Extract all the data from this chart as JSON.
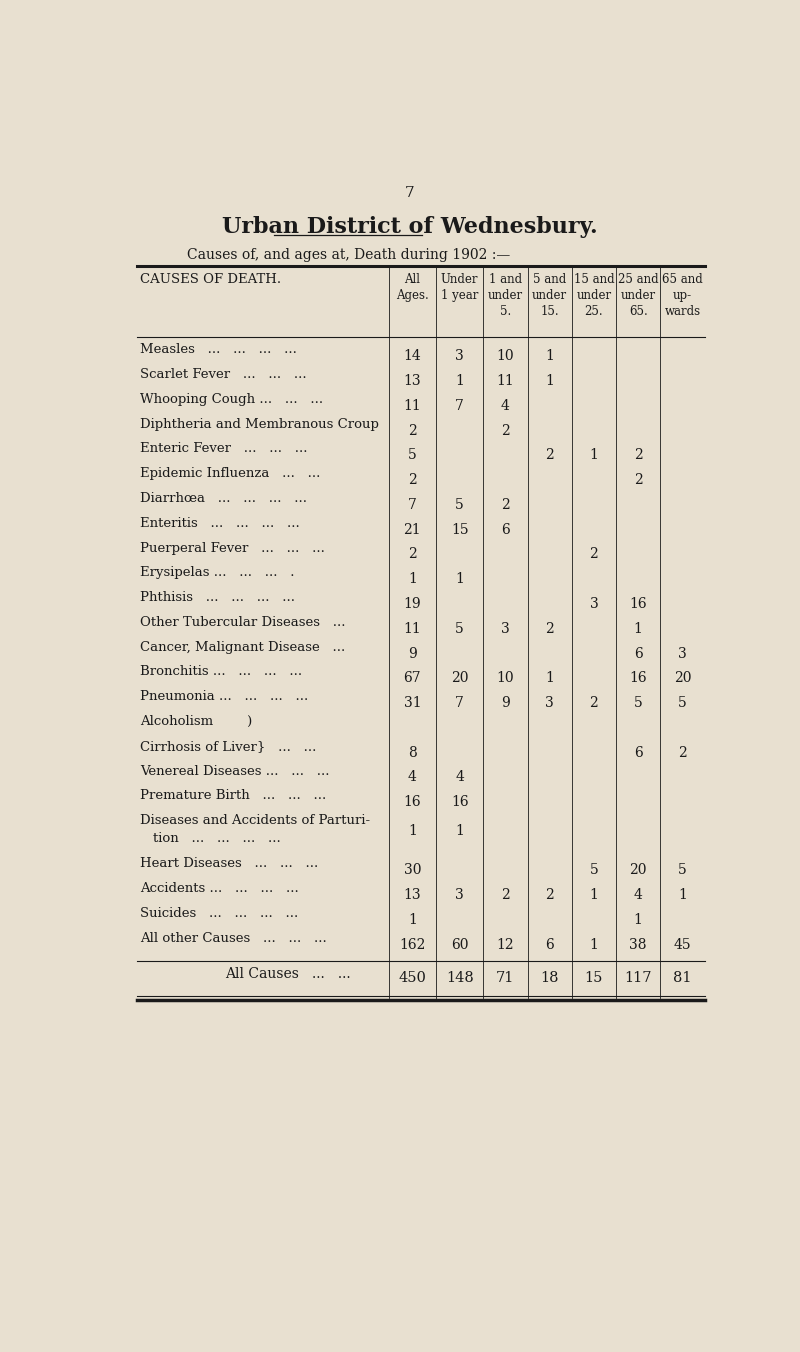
{
  "page_number": "7",
  "title": "Urban District of Wednesbury.",
  "subtitle": "Causes of, and ages at, Death during 1902 :—",
  "background_color": "#e8e0d0",
  "text_color": "#1a1a1a",
  "rows": [
    {
      "cause": "Measles   ...   ...   ...   ...",
      "all": "14",
      "u1": "3",
      "1to5": "10",
      "5to15": "1",
      "15to25": "",
      "25to65": "",
      "65up": ""
    },
    {
      "cause": "Scarlet Fever   ...   ...   ...",
      "all": "13",
      "u1": "1",
      "1to5": "11",
      "5to15": "1",
      "15to25": "",
      "25to65": "",
      "65up": ""
    },
    {
      "cause": "Whooping Cough ...   ...   ...",
      "all": "11",
      "u1": "7",
      "1to5": "4",
      "5to15": "",
      "15to25": "",
      "25to65": "",
      "65up": ""
    },
    {
      "cause": "Diphtheria and Membranous Croup",
      "all": "2",
      "u1": "",
      "1to5": "2",
      "5to15": "",
      "15to25": "",
      "25to65": "",
      "65up": ""
    },
    {
      "cause": "Enteric Fever   ...   ...   ...",
      "all": "5",
      "u1": "",
      "1to5": "",
      "5to15": "2",
      "15to25": "1",
      "25to65": "2",
      "65up": ""
    },
    {
      "cause": "Epidemic Influenza   ...   ...",
      "all": "2",
      "u1": "",
      "1to5": "",
      "5to15": "",
      "15to25": "",
      "25to65": "2",
      "65up": ""
    },
    {
      "cause": "Diarrhœa   ...   ...   ...   ...",
      "all": "7",
      "u1": "5",
      "1to5": "2",
      "5to15": "",
      "15to25": "",
      "25to65": "",
      "65up": ""
    },
    {
      "cause": "Enteritis   ...   ...   ...   ...",
      "all": "21",
      "u1": "15",
      "1to5": "6",
      "5to15": "",
      "15to25": "",
      "25to65": "",
      "65up": ""
    },
    {
      "cause": "Puerperal Fever   ...   ...   ...",
      "all": "2",
      "u1": "",
      "1to5": "",
      "5to15": "",
      "15to25": "2",
      "25to65": "",
      "65up": ""
    },
    {
      "cause": "Erysipelas ...   ...   ...   .",
      "all": "1",
      "u1": "1",
      "1to5": "",
      "5to15": "",
      "15to25": "",
      "25to65": "",
      "65up": ""
    },
    {
      "cause": "Phthisis   ...   ...   ...   ...",
      "all": "19",
      "u1": "",
      "1to5": "",
      "5to15": "",
      "15to25": "3",
      "25to65": "16",
      "65up": ""
    },
    {
      "cause": "Other Tubercular Diseases   ...",
      "all": "11",
      "u1": "5",
      "1to5": "3",
      "5to15": "2",
      "15to25": "",
      "25to65": "1",
      "65up": ""
    },
    {
      "cause": "Cancer, Malignant Disease   ...",
      "all": "9",
      "u1": "",
      "1to5": "",
      "5to15": "",
      "15to25": "",
      "25to65": "6",
      "65up": "3"
    },
    {
      "cause": "Bronchitis ...   ...   ...   ...",
      "all": "67",
      "u1": "20",
      "1to5": "10",
      "5to15": "1",
      "15to25": "",
      "25to65": "16",
      "65up": "20"
    },
    {
      "cause": "Pneumonia ...   ...   ...   ...",
      "all": "31",
      "u1": "7",
      "1to5": "9",
      "5to15": "3",
      "15to25": "2",
      "25to65": "5",
      "65up": "5"
    },
    {
      "cause": "Alcoholism        )",
      "all": "",
      "u1": "",
      "1to5": "",
      "5to15": "",
      "15to25": "",
      "25to65": "",
      "65up": "",
      "two_line": false
    },
    {
      "cause": "Cirrhosis of Liver}   ...   ...",
      "all": "8",
      "u1": "",
      "1to5": "",
      "5to15": "",
      "15to25": "",
      "25to65": "6",
      "65up": "2"
    },
    {
      "cause": "Venereal Diseases ...   ...   ...",
      "all": "4",
      "u1": "4",
      "1to5": "",
      "5to15": "",
      "15to25": "",
      "25to65": "",
      "65up": ""
    },
    {
      "cause": "Premature Birth   ...   ...   ...",
      "all": "16",
      "u1": "16",
      "1to5": "",
      "5to15": "",
      "15to25": "",
      "25to65": "",
      "65up": ""
    },
    {
      "cause": "Diseases and Accidents of Parturi-|    tion   ...   ...   ...   ...",
      "all": "1",
      "u1": "1",
      "1to5": "",
      "5to15": "",
      "15to25": "",
      "25to65": "",
      "65up": ""
    },
    {
      "cause": "Heart Diseases   ...   ...   ...",
      "all": "30",
      "u1": "",
      "1to5": "",
      "5to15": "",
      "15to25": "5",
      "25to65": "20",
      "65up": "5"
    },
    {
      "cause": "Accidents ...   ...   ...   ...",
      "all": "13",
      "u1": "3",
      "1to5": "2",
      "5to15": "2",
      "15to25": "1",
      "25to65": "4",
      "65up": "1"
    },
    {
      "cause": "Suicides   ...   ...   ...   ...",
      "all": "1",
      "u1": "",
      "1to5": "",
      "5to15": "",
      "15to25": "",
      "25to65": "1",
      "65up": ""
    },
    {
      "cause": "All other Causes   ...   ...   ...",
      "all": "162",
      "u1": "60",
      "1to5": "12",
      "5to15": "6",
      "15to25": "1",
      "25to65": "38",
      "65up": "45"
    }
  ],
  "footer_row": {
    "cause": "All Causes   ...   ...",
    "all": "450",
    "u1": "148",
    "1to5": "71",
    "5to15": "18",
    "15to25": "15",
    "25to65": "117",
    "65up": "81"
  }
}
